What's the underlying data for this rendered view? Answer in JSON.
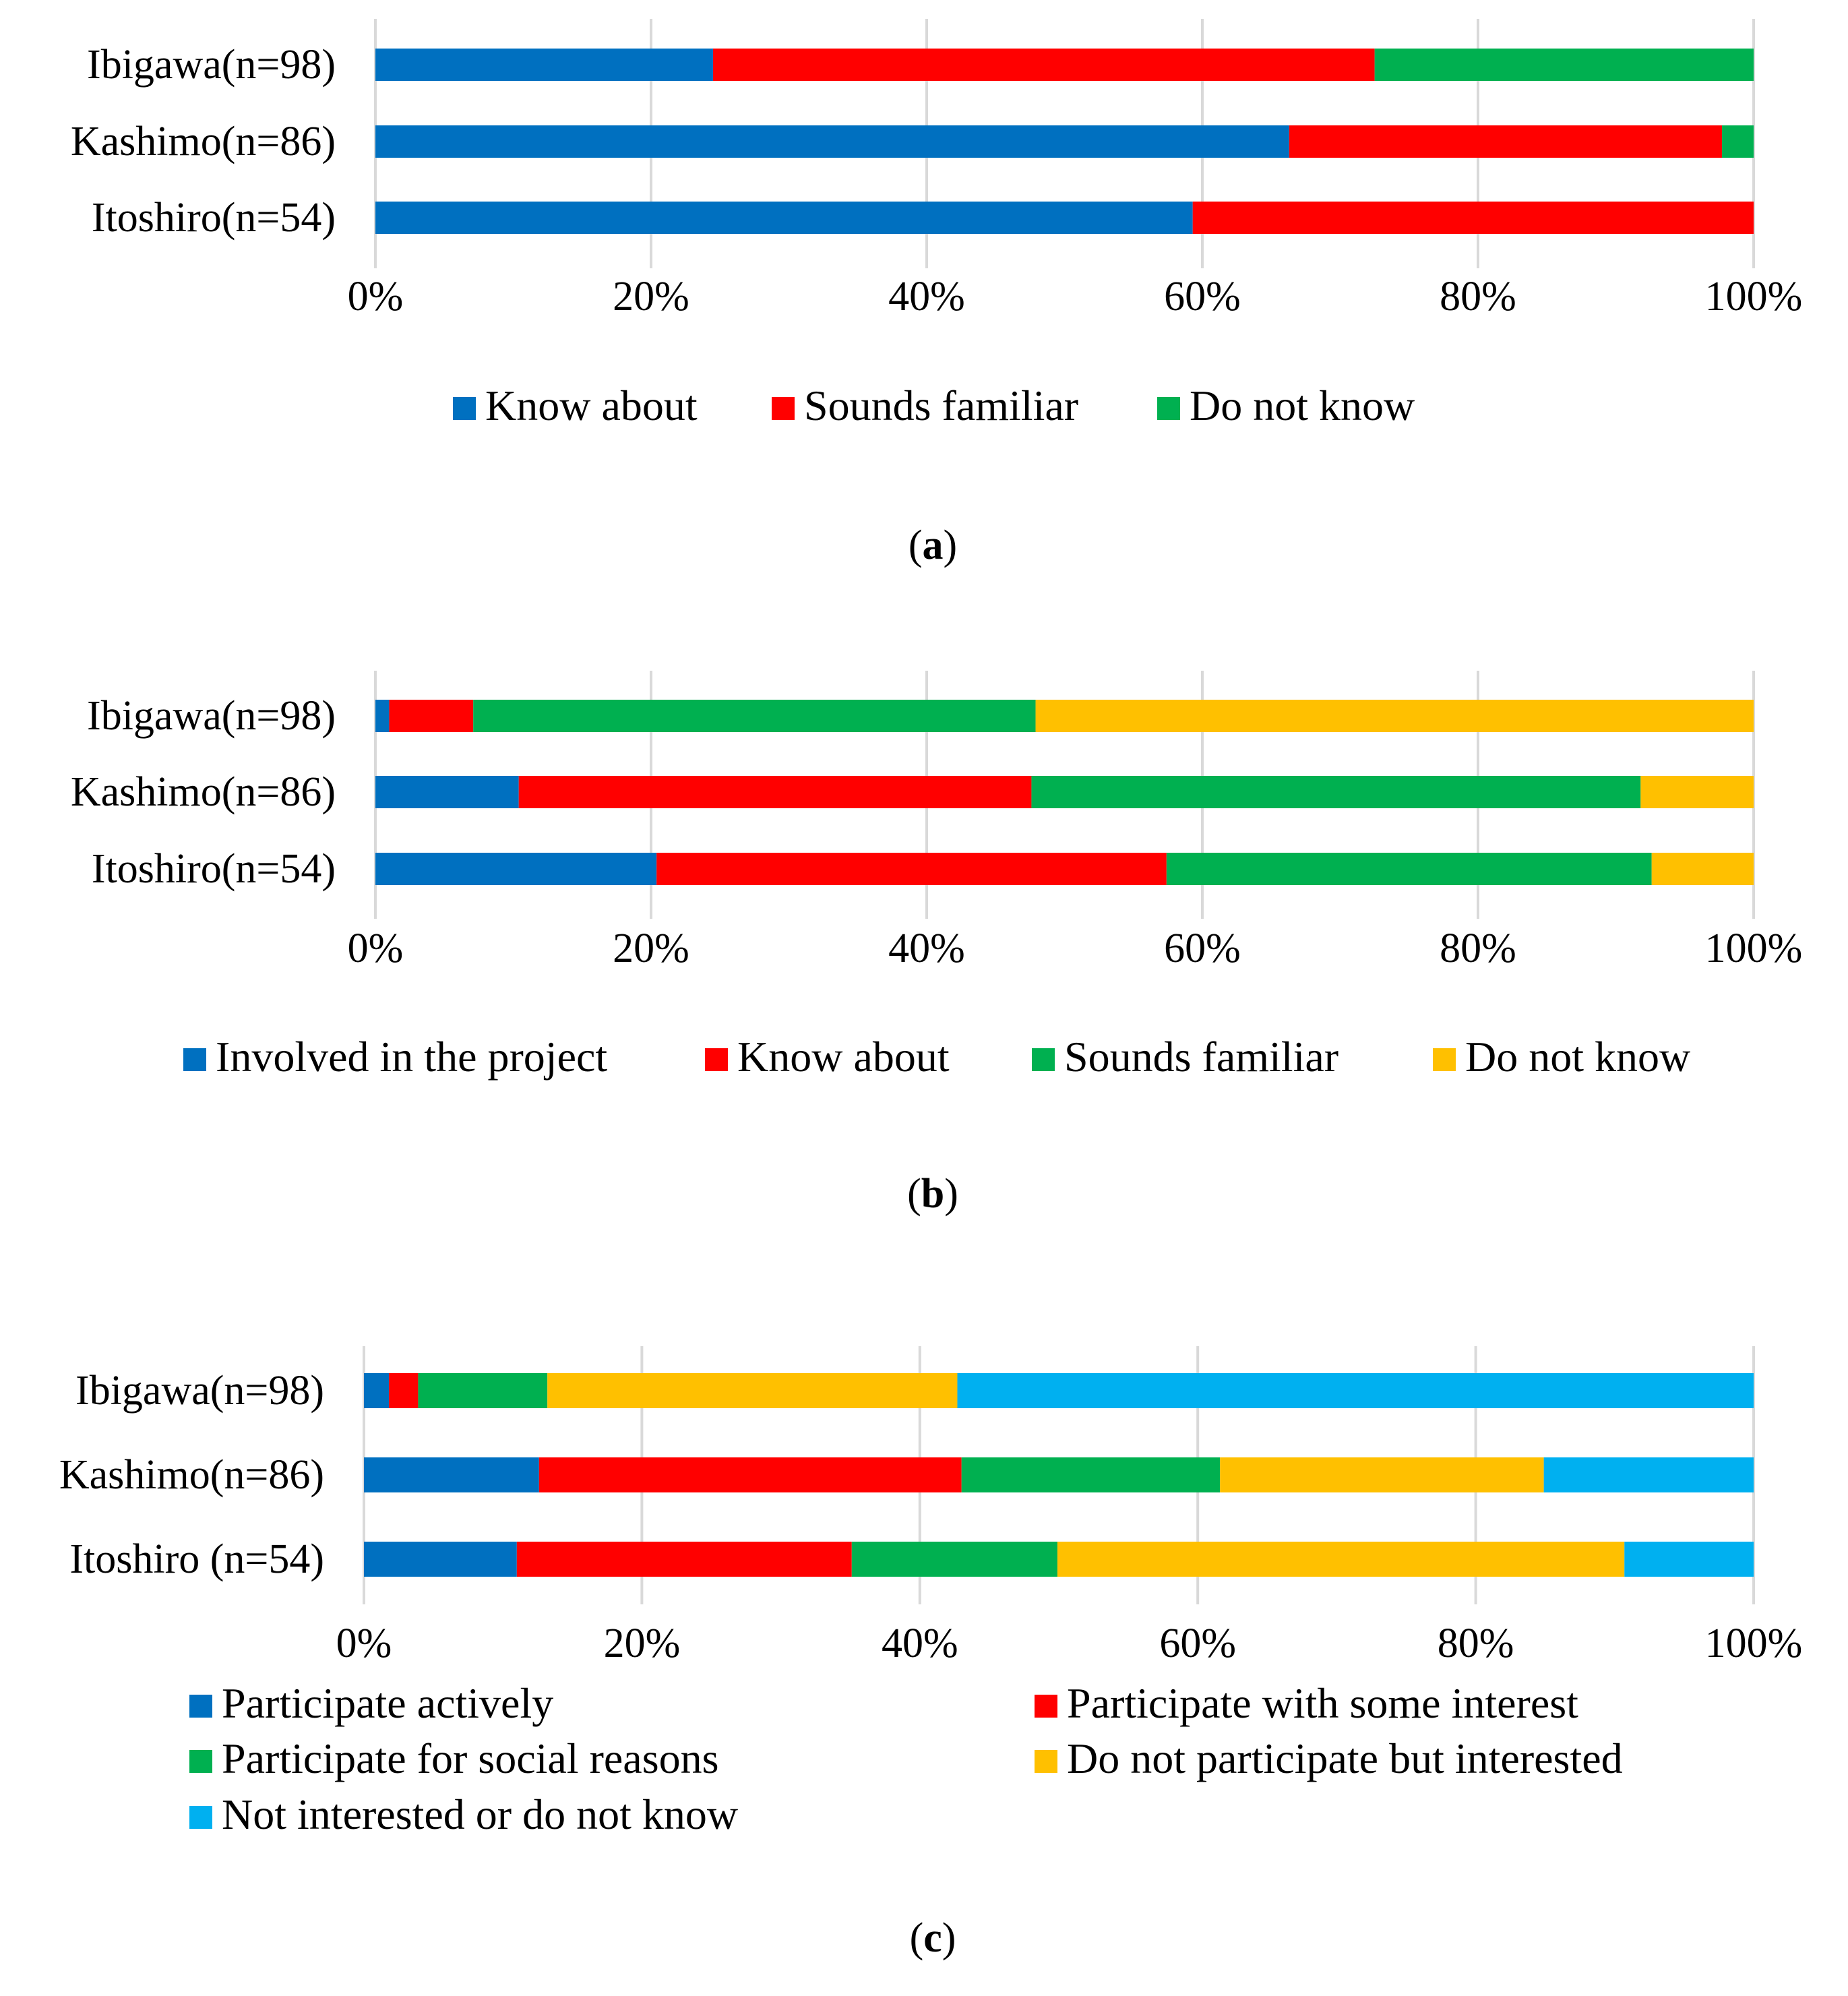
{
  "chart_data": [
    {
      "type": "bar",
      "orientation": "horizontal",
      "stacked": true,
      "percent": true,
      "panel_label": "a",
      "categories": [
        "Ibigawa(n=98)",
        "Kashimo(n=86)",
        "Itoshiro(n=54)"
      ],
      "series": [
        {
          "name": "Know about",
          "color": "#0070C0",
          "values": [
            24.5,
            66.3,
            59.3
          ]
        },
        {
          "name": "Sounds familiar",
          "color": "#FF0000",
          "values": [
            48.0,
            31.4,
            40.7
          ]
        },
        {
          "name": "Do not know",
          "color": "#00B050",
          "values": [
            27.5,
            2.3,
            0.0
          ]
        }
      ],
      "x_ticks": [
        "0%",
        "20%",
        "40%",
        "60%",
        "80%",
        "100%"
      ],
      "xlim": [
        0,
        100
      ],
      "grid": "vertical",
      "legend_position": "bottom"
    },
    {
      "type": "bar",
      "orientation": "horizontal",
      "stacked": true,
      "percent": true,
      "panel_label": "b",
      "categories": [
        "Ibigawa(n=98)",
        "Kashimo(n=86)",
        "Itoshiro(n=54)"
      ],
      "series": [
        {
          "name": "Involved in the project",
          "color": "#0070C0",
          "values": [
            1.0,
            10.4,
            20.4
          ]
        },
        {
          "name": "Know about",
          "color": "#FF0000",
          "values": [
            6.1,
            37.2,
            37.0
          ]
        },
        {
          "name": "Sounds familiar",
          "color": "#00B050",
          "values": [
            40.8,
            44.2,
            35.2
          ]
        },
        {
          "name": "Do not know",
          "color": "#FFC000",
          "values": [
            52.1,
            8.2,
            7.4
          ]
        }
      ],
      "x_ticks": [
        "0%",
        "20%",
        "40%",
        "60%",
        "80%",
        "100%"
      ],
      "xlim": [
        0,
        100
      ],
      "grid": "vertical",
      "legend_position": "bottom"
    },
    {
      "type": "bar",
      "orientation": "horizontal",
      "stacked": true,
      "percent": true,
      "panel_label": "c",
      "categories": [
        "Ibigawa(n=98)",
        "Kashimo(n=86)",
        "Itoshiro (n=54)"
      ],
      "series": [
        {
          "name": "Participate actively",
          "color": "#0070C0",
          "values": [
            1.8,
            12.6,
            11.0
          ]
        },
        {
          "name": "Participate with some interest",
          "color": "#FF0000",
          "values": [
            2.1,
            30.4,
            24.1
          ]
        },
        {
          "name": "Participate for social reasons",
          "color": "#00B050",
          "values": [
            9.3,
            18.6,
            14.8
          ]
        },
        {
          "name": "Do not participate but interested",
          "color": "#FFC000",
          "values": [
            29.5,
            23.3,
            40.8
          ]
        },
        {
          "name": "Not interested or do not know",
          "color": "#00B0F0",
          "values": [
            57.3,
            15.1,
            9.3
          ]
        }
      ],
      "x_ticks": [
        "0%",
        "20%",
        "40%",
        "60%",
        "80%",
        "100%"
      ],
      "xlim": [
        0,
        100
      ],
      "grid": "vertical",
      "legend_position": "bottom"
    }
  ]
}
